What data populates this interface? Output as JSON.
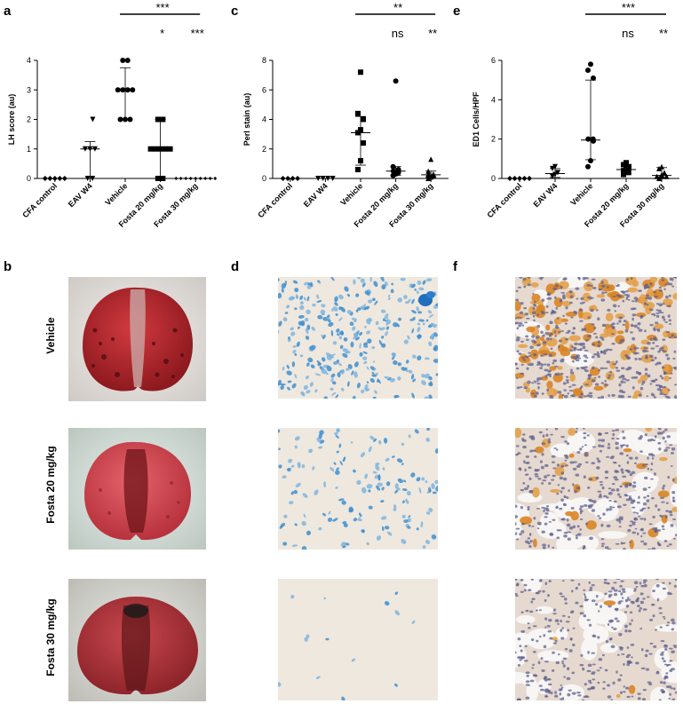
{
  "panels": {
    "a": "a",
    "b": "b",
    "c": "c",
    "d": "d",
    "e": "e",
    "f": "f"
  },
  "row_labels": [
    "Vehicle",
    "Fosta 20 mg/kg",
    "Fosta 30 mg/kg"
  ],
  "chart_data": [
    {
      "type": "scatter",
      "panel": "a",
      "ylabel": "LH score (au)",
      "ylim": [
        0,
        4
      ],
      "yticks": [
        "0",
        "1",
        "2",
        "3",
        "4"
      ],
      "categories": [
        "CFA control",
        "EAV W4",
        "Vehicle",
        "Fosta 20 mg/kg",
        "Fosta 30 mg/kg"
      ],
      "markers": [
        "diamond",
        "triangle-down",
        "circle",
        "square",
        "diamond-small"
      ],
      "points": [
        [
          0,
          0,
          0,
          0,
          0
        ],
        [
          0,
          0,
          1,
          1,
          1,
          2
        ],
        [
          2,
          2,
          2,
          3,
          3,
          3,
          3,
          4,
          4
        ],
        [
          0,
          0,
          1,
          1,
          1,
          1,
          1,
          2,
          2
        ],
        [
          0,
          0,
          0,
          0,
          0,
          0,
          0,
          0,
          0
        ]
      ],
      "median": [
        0,
        1,
        3,
        1,
        0
      ],
      "error_low": [
        0,
        0,
        2,
        0,
        0
      ],
      "error_high": [
        0,
        1.25,
        3.75,
        2,
        0
      ],
      "significance": {
        "bracket": "***",
        "labels": [
          "*",
          "***"
        ]
      }
    },
    {
      "type": "scatter",
      "panel": "c",
      "ylabel": "Perl stain (au)",
      "ylim": [
        0,
        8
      ],
      "yticks": [
        "0",
        "2",
        "4",
        "6",
        "8"
      ],
      "categories": [
        "CFA control",
        "EAV W4",
        "Vehicle",
        "Fosta 20 mg/kg",
        "Fosta 30 mg/kg"
      ],
      "markers": [
        "diamond",
        "triangle-down",
        "square",
        "circle",
        "triangle-up"
      ],
      "points": [
        [
          0,
          0,
          0,
          0
        ],
        [
          0,
          0,
          0,
          0
        ],
        [
          0.6,
          1.2,
          2.4,
          3.1,
          3.3,
          4.0,
          4.4,
          7.2
        ],
        [
          0.2,
          0.3,
          0.4,
          0.5,
          0.5,
          0.6,
          0.8,
          6.6
        ],
        [
          0.0,
          0.1,
          0.2,
          0.2,
          0.3,
          0.3,
          0.5,
          1.3
        ]
      ],
      "median": [
        0,
        0,
        3.1,
        0.5,
        0.25
      ],
      "error_low": [
        0,
        0,
        0.9,
        0.2,
        0.1
      ],
      "error_high": [
        0,
        0,
        4.2,
        0.8,
        0.5
      ],
      "significance": {
        "bracket": "**",
        "labels": [
          "ns",
          "**"
        ]
      }
    },
    {
      "type": "scatter",
      "panel": "e",
      "ylabel": "ED1 Cells/HPF",
      "ylim": [
        0,
        6
      ],
      "yticks": [
        "0",
        "2",
        "4",
        "6"
      ],
      "categories": [
        "CFA control",
        "EAV W4",
        "Vehicle",
        "Fosta 20 mg/kg",
        "Fosta 30 mg/kg"
      ],
      "markers": [
        "diamond",
        "triangle-down",
        "circle",
        "square",
        "triangle-up"
      ],
      "points": [
        [
          0,
          0,
          0,
          0,
          0
        ],
        [
          0.1,
          0.2,
          0.3,
          0.5,
          0.6
        ],
        [
          0.6,
          0.9,
          1.9,
          2.0,
          2.0,
          5.1,
          5.5,
          5.8
        ],
        [
          0.2,
          0.3,
          0.3,
          0.4,
          0.5,
          0.6,
          0.7,
          0.8
        ],
        [
          0.0,
          0.1,
          0.1,
          0.1,
          0.2,
          0.3,
          0.5,
          0.6
        ]
      ],
      "median": [
        0,
        0.25,
        1.95,
        0.45,
        0.15
      ],
      "error_low": [
        0,
        0.05,
        0.95,
        0.25,
        0.05
      ],
      "error_high": [
        0,
        0.5,
        5.0,
        0.7,
        0.55
      ],
      "significance": {
        "bracket": "***",
        "labels": [
          "ns",
          "**"
        ]
      }
    }
  ],
  "colors": {
    "lung_red": "#a8242b",
    "lung_pink": "#d8555f",
    "perl_blue": "#3c8fcf",
    "ed1_orange": "#d9862a",
    "tissue_bg": "#ece7e1",
    "nuclei": "#6c6f9a"
  }
}
